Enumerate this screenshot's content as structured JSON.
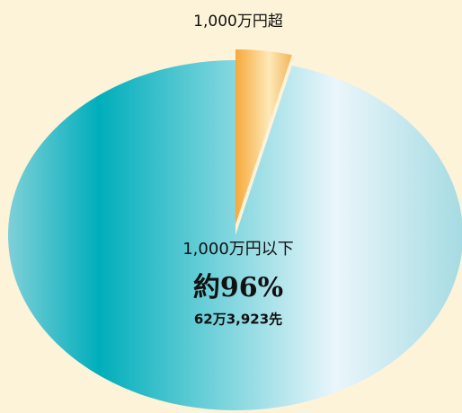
{
  "chart_data": {
    "type": "pie",
    "categories": [
      "1,000万円超",
      "1,000万円以下"
    ],
    "values": [
      4,
      96
    ],
    "value_labels": [
      null,
      "約96%"
    ],
    "colors": [
      "#f6a93b",
      "#00aebb"
    ],
    "annotations": [
      "62万3,923先"
    ]
  }
}
